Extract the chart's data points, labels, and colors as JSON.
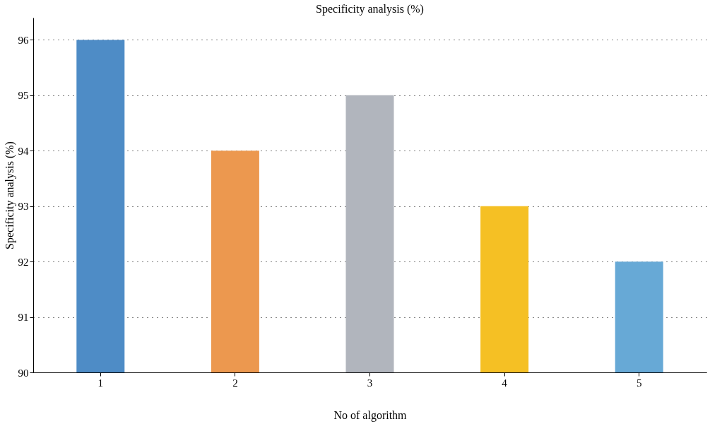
{
  "chart_data": {
    "type": "bar",
    "title": "Specificity analysis (%)",
    "xlabel": "No of algorithm",
    "ylabel": "Specificity analysis (%)",
    "categories": [
      "1",
      "2",
      "3",
      "4",
      "5"
    ],
    "values": [
      96,
      94,
      95,
      93,
      92
    ],
    "colors": [
      "#4e8cc6",
      "#ec984f",
      "#b1b5bd",
      "#f5c024",
      "#67a9d6"
    ],
    "ylim": [
      90,
      96.4
    ],
    "yticks": [
      90,
      91,
      92,
      93,
      94,
      95,
      96
    ],
    "grid": "y"
  }
}
